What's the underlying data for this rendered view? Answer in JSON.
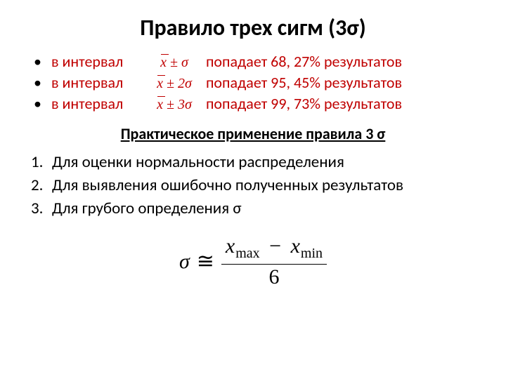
{
  "title": "Правило трех сигм (3σ)",
  "bullets": {
    "prefix": "в интервал",
    "items": [
      {
        "formula_html": "x̄ ± σ",
        "tail": "попадает 68, 27% результатов"
      },
      {
        "formula_html": "x̄ ± 2σ",
        "tail": "попадает 95, 45% результатов"
      },
      {
        "formula_html": "x̄ ± 3σ",
        "tail": "попадает 99, 73% результатов"
      }
    ]
  },
  "subtitle": "Практическое применение правила 3 σ",
  "numbered": [
    "Для оценки нормальности распределения",
    "Для выявления ошибочно полученных результатов",
    "Для грубого определения σ"
  ],
  "equation": {
    "lhs": "σ",
    "op": "≅",
    "num_a": "x",
    "num_a_sub": "max",
    "num_b": "x",
    "num_b_sub": "min",
    "den": "6"
  },
  "colors": {
    "bullet_text": "#c00000",
    "text": "#000000",
    "bg": "#ffffff"
  },
  "typography": {
    "title_fontsize": 32,
    "body_fontsize": 23,
    "bullet_fontsize": 22,
    "equation_fontsize": 30
  }
}
